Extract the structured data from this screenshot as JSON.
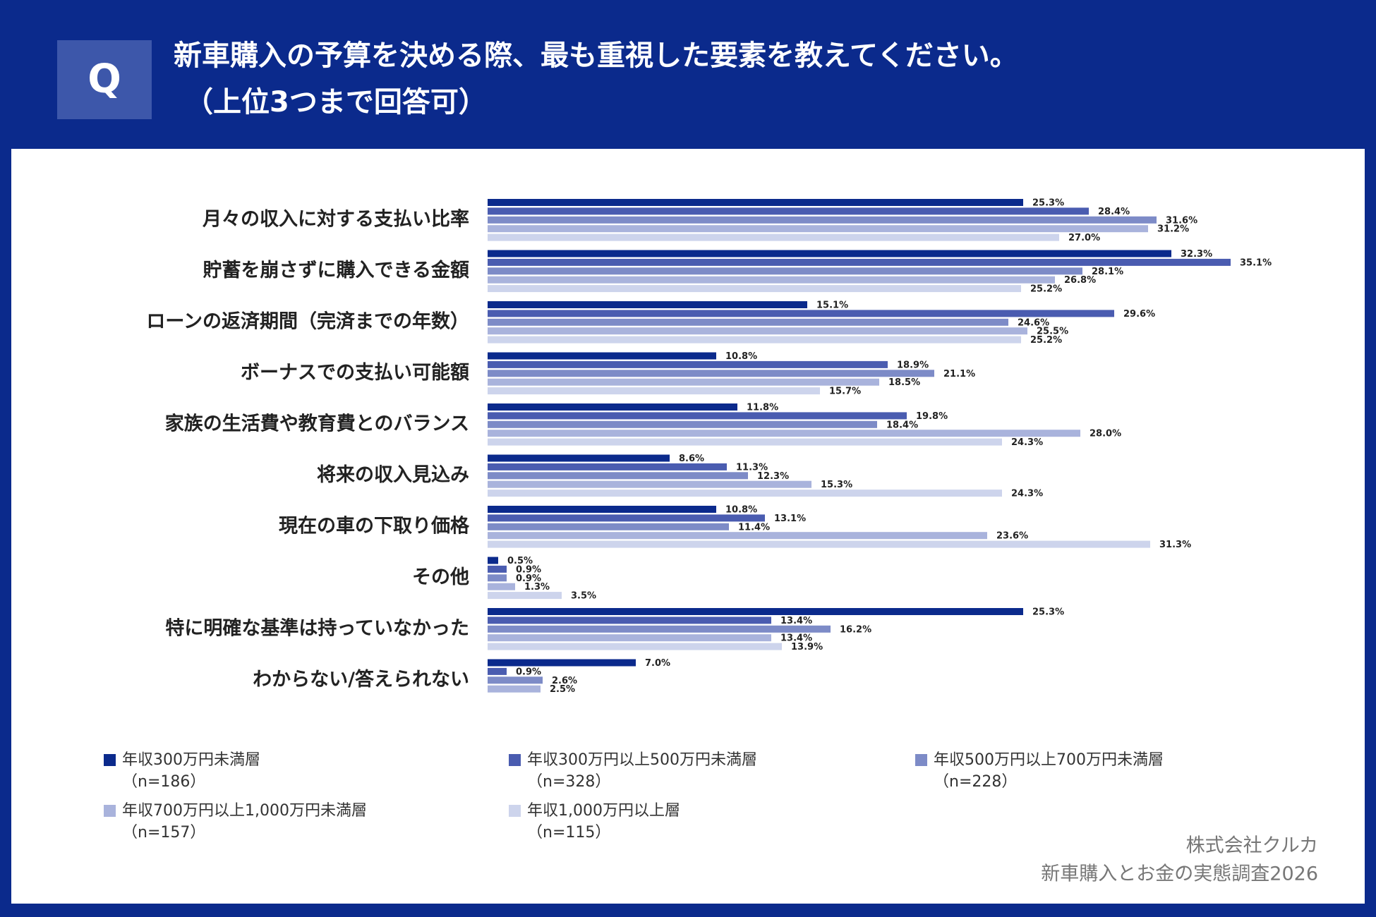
{
  "chart_data": {
    "type": "grouped-hbar",
    "badge": "Q",
    "title": "新車購入の予算を決める際、最も重視した要素を教えてください。",
    "subtitle": "（上位3つまで回答可）",
    "categories": [
      "月々の収入に対する支払い比率",
      "貯蓄を崩さずに購入できる金額",
      "ローンの返済期間（完済までの年数）",
      "ボーナスでの支払い可能額",
      "家族の生活費や教育費とのバランス",
      "将来の収入見込み",
      "現在の車の下取り価格",
      "その他",
      "特に明確な基準は持っていなかった",
      "わからない/答えられない"
    ],
    "series": [
      {
        "name": "年収300万円未満層",
        "sample": "（n=186）",
        "color": "#0b2a8c",
        "values": [
          25.3,
          32.3,
          15.1,
          10.8,
          11.8,
          8.6,
          10.8,
          0.5,
          25.3,
          7.0
        ],
        "value_labels": [
          "25.3%",
          "32.3%",
          "15.1%",
          "10.8%",
          "11.8%",
          "8.6%",
          "10.8%",
          "0.5%",
          "25.3%",
          "7.0%"
        ]
      },
      {
        "name": "年収300万円以上500万円未満層",
        "sample": "（n=328）",
        "color": "#4a5cb0",
        "values": [
          28.4,
          35.1,
          29.6,
          18.9,
          19.8,
          11.3,
          13.1,
          0.9,
          13.4,
          0.9
        ],
        "value_labels": [
          "28.4%",
          "35.1%",
          "29.6%",
          "18.9%",
          "19.8%",
          "11.3%",
          "13.1%",
          "0.9%",
          "13.4%",
          "0.9%"
        ]
      },
      {
        "name": "年収500万円以上700万円未満層",
        "sample": "（n=228）",
        "color": "#7d8bc7",
        "values": [
          31.6,
          28.1,
          24.6,
          21.1,
          18.4,
          12.3,
          11.4,
          0.9,
          16.2,
          2.6
        ],
        "value_labels": [
          "31.6%",
          "28.1%",
          "24.6%",
          "21.1%",
          "18.4%",
          "12.3%",
          "11.4%",
          "0.9%",
          "16.2%",
          "2.6%"
        ]
      },
      {
        "name": "年収700万円以上1,000万円未満層",
        "sample": "（n=157）",
        "color": "#a9b3dc",
        "values": [
          31.2,
          26.8,
          25.5,
          18.5,
          28.0,
          15.3,
          23.6,
          1.3,
          13.4,
          2.5
        ],
        "value_labels": [
          "31.2%",
          "26.8%",
          "25.5%",
          "18.5%",
          "28.0%",
          "15.3%",
          "23.6%",
          "1.3%",
          "13.4%",
          "2.5%"
        ]
      },
      {
        "name": "年収1,000万円以上層",
        "sample": "（n=115）",
        "color": "#cdd4ec",
        "values": [
          27.0,
          25.2,
          25.2,
          15.7,
          24.3,
          24.3,
          31.3,
          3.5,
          13.9,
          null
        ],
        "value_labels": [
          "27.0%",
          "25.2%",
          "25.2%",
          "15.7%",
          "24.3%",
          "24.3%",
          "31.3%",
          "3.5%",
          "13.9%",
          null
        ]
      }
    ],
    "source": [
      "株式会社クルカ",
      "新車購入とお金の実態調査2026"
    ]
  }
}
